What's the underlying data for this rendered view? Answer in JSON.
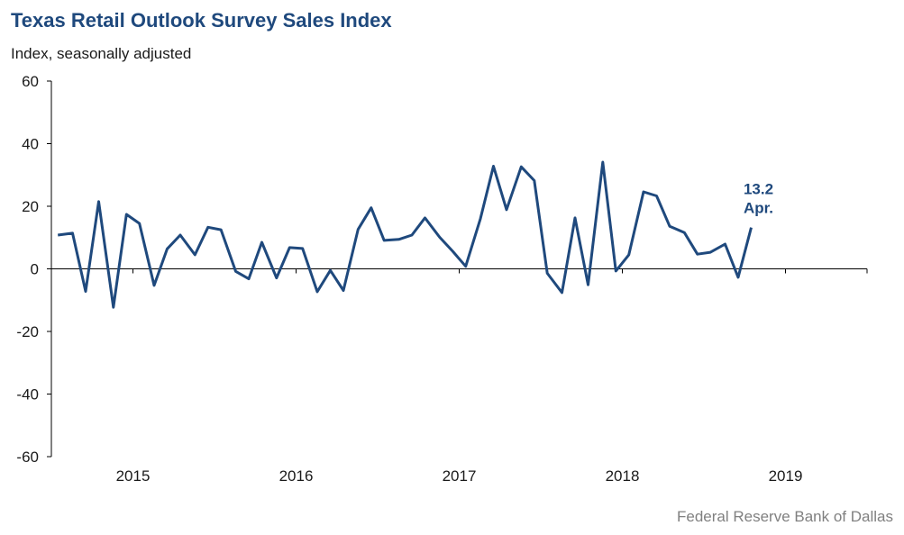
{
  "chart_data": {
    "type": "line",
    "title": "Texas Retail Outlook Survey Sales Index",
    "subtitle": "Index, seasonally adjusted",
    "source": "Federal Reserve Bank of Dallas",
    "ylim": [
      -60,
      60
    ],
    "yticks": [
      60,
      40,
      20,
      0,
      -20,
      -40,
      -60
    ],
    "xlim": [
      2014.5,
      2019.5
    ],
    "xtick_labels": [
      "2015",
      "2016",
      "2017",
      "2018",
      "2019"
    ],
    "grid": false,
    "line_color": "#1f497d",
    "series": [
      {
        "x": [
          2014.54,
          2014.63,
          2014.71,
          2014.79,
          2014.88,
          2014.96,
          2015.04,
          2015.13,
          2015.21,
          2015.29,
          2015.38,
          2015.46,
          2015.54,
          2015.63,
          2015.71,
          2015.79,
          2015.88,
          2015.96,
          2016.04,
          2016.13,
          2016.21,
          2016.29,
          2016.38,
          2016.46,
          2016.54,
          2016.63,
          2016.71,
          2016.79,
          2016.88,
          2016.96,
          2017.04,
          2017.13,
          2017.21,
          2017.29,
          2017.38,
          2017.46,
          2017.54,
          2017.63,
          2017.71,
          2017.79,
          2017.88,
          2017.96,
          2018.04,
          2018.13,
          2018.21,
          2018.29,
          2018.38,
          2018.46,
          2018.54,
          2018.63,
          2018.71,
          2018.79
        ],
        "values": [
          10.8,
          11.4,
          -7.2,
          21.5,
          -12.3,
          17.4,
          14.5,
          -5.3,
          6.4,
          10.8,
          4.5,
          13.3,
          12.5,
          -0.8,
          -3.2,
          8.5,
          -2.9,
          6.8,
          6.5,
          -7.3,
          -0.5,
          -6.9,
          12.6,
          19.5,
          9.1,
          9.4,
          10.8,
          16.3,
          10.1,
          5.6,
          0.8,
          16.0,
          32.8,
          18.9,
          32.6,
          28.2,
          -1.4,
          -7.6,
          16.3,
          -5.1,
          34.1,
          -0.7,
          4.5,
          24.6,
          23.3,
          13.6,
          11.6,
          4.7,
          5.3,
          7.9,
          -2.7,
          13.2
        ]
      }
    ],
    "annotation": {
      "value": "13.2",
      "label": "Apr."
    }
  }
}
